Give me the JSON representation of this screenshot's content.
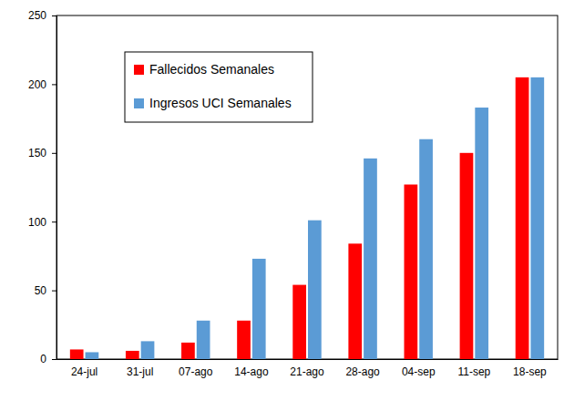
{
  "chart_data": {
    "type": "bar",
    "categories": [
      "24-jul",
      "31-jul",
      "07-ago",
      "14-ago",
      "21-ago",
      "28-ago",
      "04-sep",
      "11-sep",
      "18-sep"
    ],
    "series": [
      {
        "name": "Fallecidos Semanales",
        "color": "#ff0000",
        "values": [
          7,
          6,
          12,
          28,
          54,
          84,
          127,
          150,
          205
        ]
      },
      {
        "name": "Ingresos UCI Semanales",
        "color": "#5b9bd5",
        "values": [
          5,
          13,
          28,
          73,
          101,
          146,
          160,
          183,
          205
        ]
      }
    ],
    "ylim": [
      0,
      250
    ],
    "yticks": [
      0,
      50,
      100,
      150,
      200,
      250
    ],
    "grid": false,
    "legend": "upper left"
  }
}
